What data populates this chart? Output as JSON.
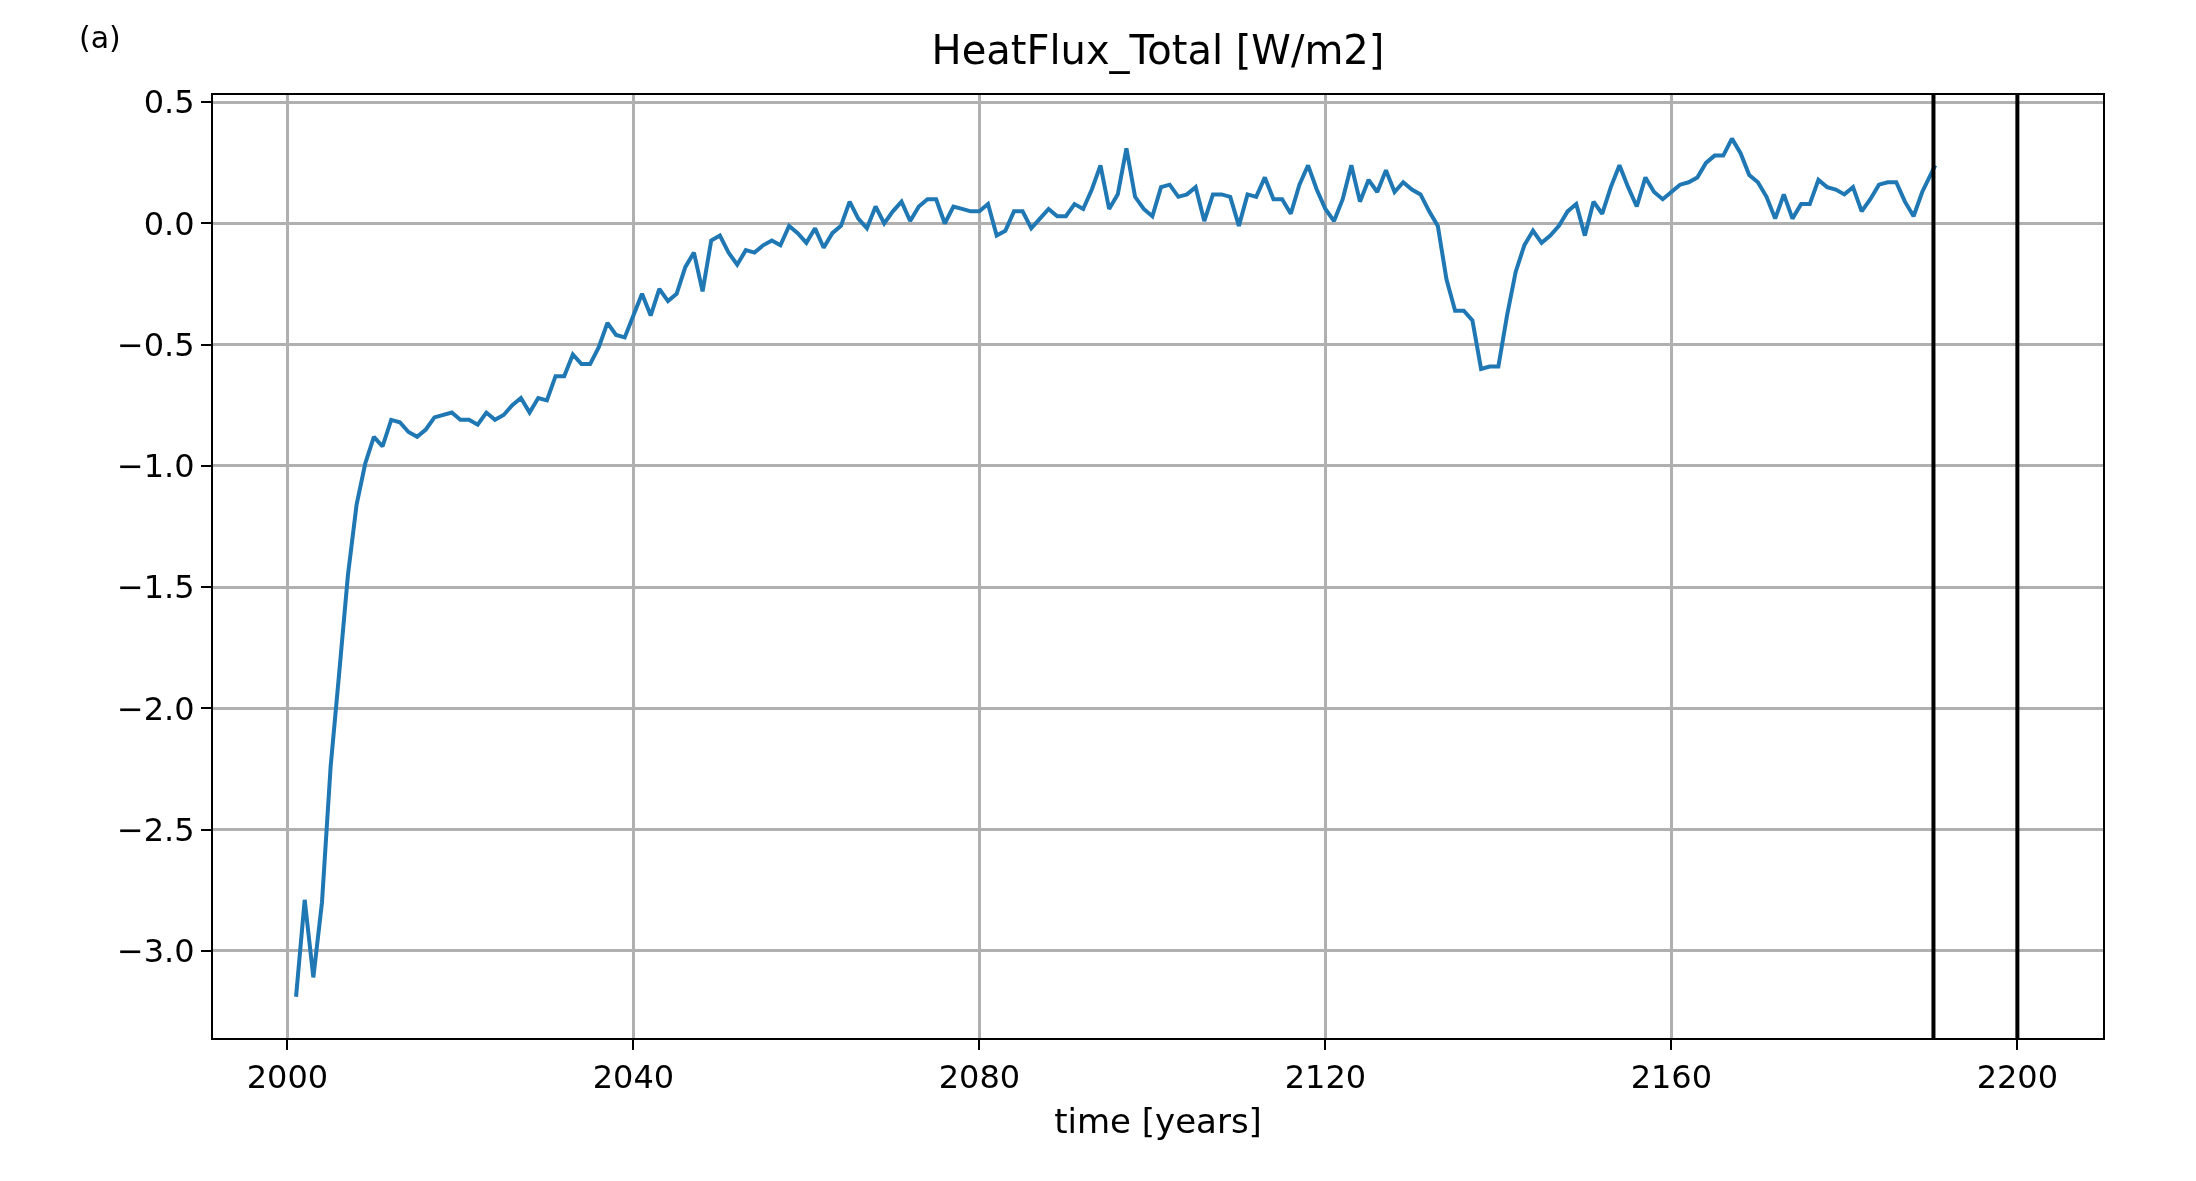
{
  "chart_data": {
    "type": "line",
    "title": "HeatFlux_Total [W/m2]",
    "xlabel": "time [years]",
    "annotations": [
      "(a)"
    ],
    "x": [
      2001,
      2002,
      2003,
      2004,
      2005,
      2006,
      2007,
      2008,
      2009,
      2010,
      2011,
      2012,
      2013,
      2014,
      2015,
      2016,
      2017,
      2019,
      2020,
      2021,
      2022,
      2023,
      2024,
      2025,
      2026,
      2027,
      2028,
      2029,
      2030,
      2031,
      2032,
      2033,
      2034,
      2035,
      2036,
      2037,
      2038,
      2039,
      2040,
      2041,
      2042,
      2043,
      2044,
      2045,
      2046,
      2047,
      2048,
      2049,
      2050,
      2051,
      2052,
      2053,
      2054,
      2055,
      2056,
      2057,
      2058,
      2059,
      2060,
      2061,
      2062,
      2063,
      2064,
      2065,
      2066,
      2067,
      2068,
      2069,
      2070,
      2071,
      2072,
      2073,
      2074,
      2075,
      2076,
      2077,
      2078,
      2079,
      2080,
      2081,
      2082,
      2083,
      2084,
      2085,
      2086,
      2087,
      2088,
      2089,
      2090,
      2091,
      2092,
      2093,
      2094,
      2095,
      2096,
      2097,
      2098,
      2099,
      2100,
      2101,
      2102,
      2103,
      2104,
      2105,
      2106,
      2107,
      2108,
      2109,
      2110,
      2111,
      2112,
      2113,
      2114,
      2115,
      2116,
      2117,
      2118,
      2119,
      2120,
      2121,
      2122,
      2123,
      2124,
      2125,
      2126,
      2127,
      2128,
      2129,
      2130,
      2131,
      2132,
      2133,
      2134,
      2135,
      2136,
      2137,
      2138,
      2139,
      2140,
      2141,
      2142,
      2143,
      2144,
      2145,
      2146,
      2147,
      2148,
      2149,
      2150,
      2151,
      2152,
      2153,
      2154,
      2155,
      2156,
      2157,
      2158,
      2159,
      2160,
      2161,
      2162,
      2163,
      2164,
      2165,
      2166,
      2167,
      2168,
      2169,
      2170,
      2171,
      2172,
      2173,
      2174,
      2175,
      2176,
      2177,
      2178,
      2179,
      2180,
      2181,
      2182,
      2183,
      2184,
      2185,
      2186,
      2187,
      2188,
      2189,
      2190.5
    ],
    "series": [
      {
        "color": "#1f77b4",
        "values": [
          -3.19,
          -2.79,
          -3.11,
          -2.8,
          -2.24,
          -1.85,
          -1.45,
          -1.16,
          -0.99,
          -0.88,
          -0.92,
          -0.81,
          -0.82,
          -0.86,
          -0.88,
          -0.85,
          -0.8,
          -0.78,
          -0.81,
          -0.81,
          -0.83,
          -0.78,
          -0.81,
          -0.79,
          -0.75,
          -0.72,
          -0.78,
          -0.72,
          -0.73,
          -0.63,
          -0.63,
          -0.54,
          -0.58,
          -0.58,
          -0.51,
          -0.41,
          -0.46,
          -0.47,
          -0.38,
          -0.29,
          -0.38,
          -0.27,
          -0.32,
          -0.29,
          -0.18,
          -0.12,
          -0.28,
          -0.07,
          -0.05,
          -0.12,
          -0.17,
          -0.11,
          -0.12,
          -0.09,
          -0.07,
          -0.09,
          -0.01,
          -0.04,
          -0.08,
          -0.02,
          -0.1,
          -0.04,
          -0.01,
          0.09,
          0.02,
          -0.02,
          0.07,
          0.0,
          0.05,
          0.09,
          0.01,
          0.07,
          0.1,
          0.1,
          0.0,
          0.07,
          0.06,
          0.05,
          0.05,
          0.08,
          -0.05,
          -0.03,
          0.05,
          0.05,
          -0.02,
          0.02,
          0.06,
          0.03,
          0.03,
          0.08,
          0.06,
          0.14,
          0.24,
          0.06,
          0.12,
          0.31,
          0.11,
          0.06,
          0.03,
          0.15,
          0.16,
          0.11,
          0.12,
          0.15,
          0.01,
          0.12,
          0.12,
          0.11,
          -0.01,
          0.12,
          0.11,
          0.19,
          0.1,
          0.1,
          0.04,
          0.16,
          0.24,
          0.14,
          0.06,
          0.01,
          0.1,
          0.24,
          0.09,
          0.18,
          0.13,
          0.22,
          0.13,
          0.17,
          0.14,
          0.12,
          0.05,
          -0.01,
          -0.23,
          -0.36,
          -0.36,
          -0.4,
          -0.6,
          -0.59,
          -0.59,
          -0.38,
          -0.2,
          -0.09,
          -0.03,
          -0.08,
          -0.05,
          -0.01,
          0.05,
          0.08,
          -0.05,
          0.09,
          0.04,
          0.15,
          0.24,
          0.15,
          0.07,
          0.19,
          0.13,
          0.1,
          0.13,
          0.16,
          0.17,
          0.19,
          0.25,
          0.28,
          0.28,
          0.35,
          0.29,
          0.2,
          0.17,
          0.11,
          0.02,
          0.12,
          0.02,
          0.08,
          0.08,
          0.18,
          0.15,
          0.14,
          0.12,
          0.15,
          0.05,
          0.1,
          0.16,
          0.17,
          0.17,
          0.09,
          0.03,
          0.13,
          0.24
        ]
      }
    ],
    "xlim": [
      1991.4,
      2209.9
    ],
    "xticks": [
      2000,
      2040,
      2080,
      2120,
      2160,
      2200
    ],
    "ylim": [
      -3.36,
      0.53
    ],
    "yticks": [
      {
        "value": -3.0,
        "label": "−3.0"
      },
      {
        "value": -2.5,
        "label": "−2.5"
      },
      {
        "value": -2.0,
        "label": "−2.0"
      },
      {
        "value": -1.5,
        "label": "−1.5"
      },
      {
        "value": -1.0,
        "label": "−1.0"
      },
      {
        "value": -0.5,
        "label": "−0.5"
      },
      {
        "value": 0,
        "label": "0.0"
      },
      {
        "value": 0.5,
        "label": "0.5"
      }
    ],
    "ref_lines": [
      {
        "axis": "x",
        "value": 2190.3,
        "color": "#000000"
      },
      {
        "axis": "x",
        "value": 2200,
        "color": "#000000"
      }
    ],
    "grid": true,
    "line_style": "solid",
    "marker": "none"
  }
}
